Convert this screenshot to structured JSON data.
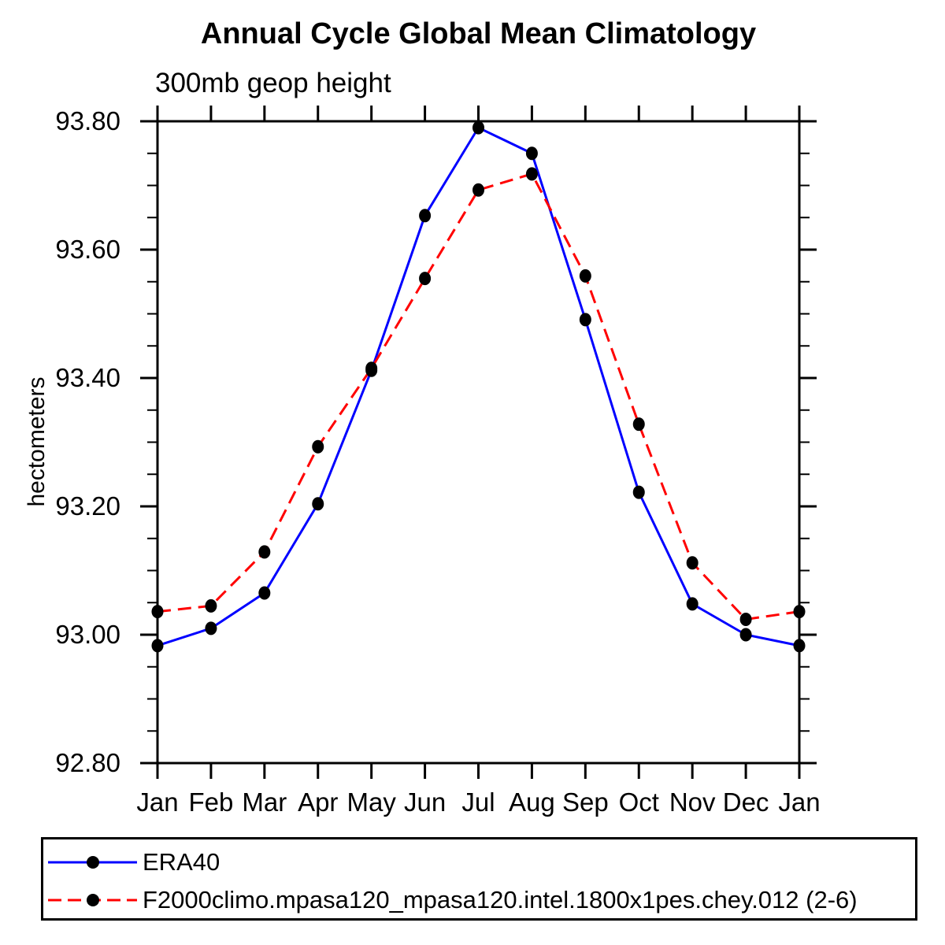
{
  "title": "Annual Cycle Global Mean Climatology",
  "subtitle": "300mb geop height",
  "colors": {
    "era40_line": "#0000ff",
    "model_line": "#ff0000",
    "marker": "#000000",
    "axis": "#000000",
    "background": "#ffffff"
  },
  "legend": {
    "entries": [
      {
        "label": "ERA40",
        "line_style": "solid",
        "color": "#0000ff"
      },
      {
        "label": "F2000climo.mpasa120_mpasa120.intel.1800x1pes.chey.012 (2-6)",
        "line_style": "dashed",
        "color": "#ff0000"
      }
    ]
  },
  "chart_data": {
    "type": "line",
    "title": "Annual Cycle Global Mean Climatology",
    "subtitle": "300mb geop height",
    "xlabel": "",
    "ylabel": "hectometers",
    "categories": [
      "Jan",
      "Feb",
      "Mar",
      "Apr",
      "May",
      "Jun",
      "Jul",
      "Aug",
      "Sep",
      "Oct",
      "Nov",
      "Dec",
      "Jan"
    ],
    "series": [
      {
        "name": "ERA40",
        "color": "#0000ff",
        "style": "solid",
        "marker": "filled-circle",
        "marker_color": "#000000",
        "values": [
          92.983,
          93.01,
          93.065,
          93.204,
          93.412,
          93.653,
          93.79,
          93.75,
          93.491,
          93.222,
          93.048,
          93.0,
          92.983
        ]
      },
      {
        "name": "F2000climo.mpasa120_mpasa120.intel.1800x1pes.chey.012 (2-6)",
        "color": "#ff0000",
        "style": "dashed",
        "marker": "filled-circle",
        "marker_color": "#000000",
        "values": [
          93.036,
          93.045,
          93.129,
          93.293,
          93.415,
          93.555,
          93.693,
          93.718,
          93.559,
          93.328,
          93.112,
          93.024,
          93.036
        ]
      }
    ],
    "ylim": [
      92.8,
      93.8
    ],
    "ytick_major_step": 0.2,
    "ytick_minor_step": 0.05,
    "ytick_labels": [
      "93.80",
      "93.60",
      "93.40",
      "93.20",
      "93.00",
      "92.80"
    ],
    "grid": false,
    "legend_position": "bottom"
  }
}
